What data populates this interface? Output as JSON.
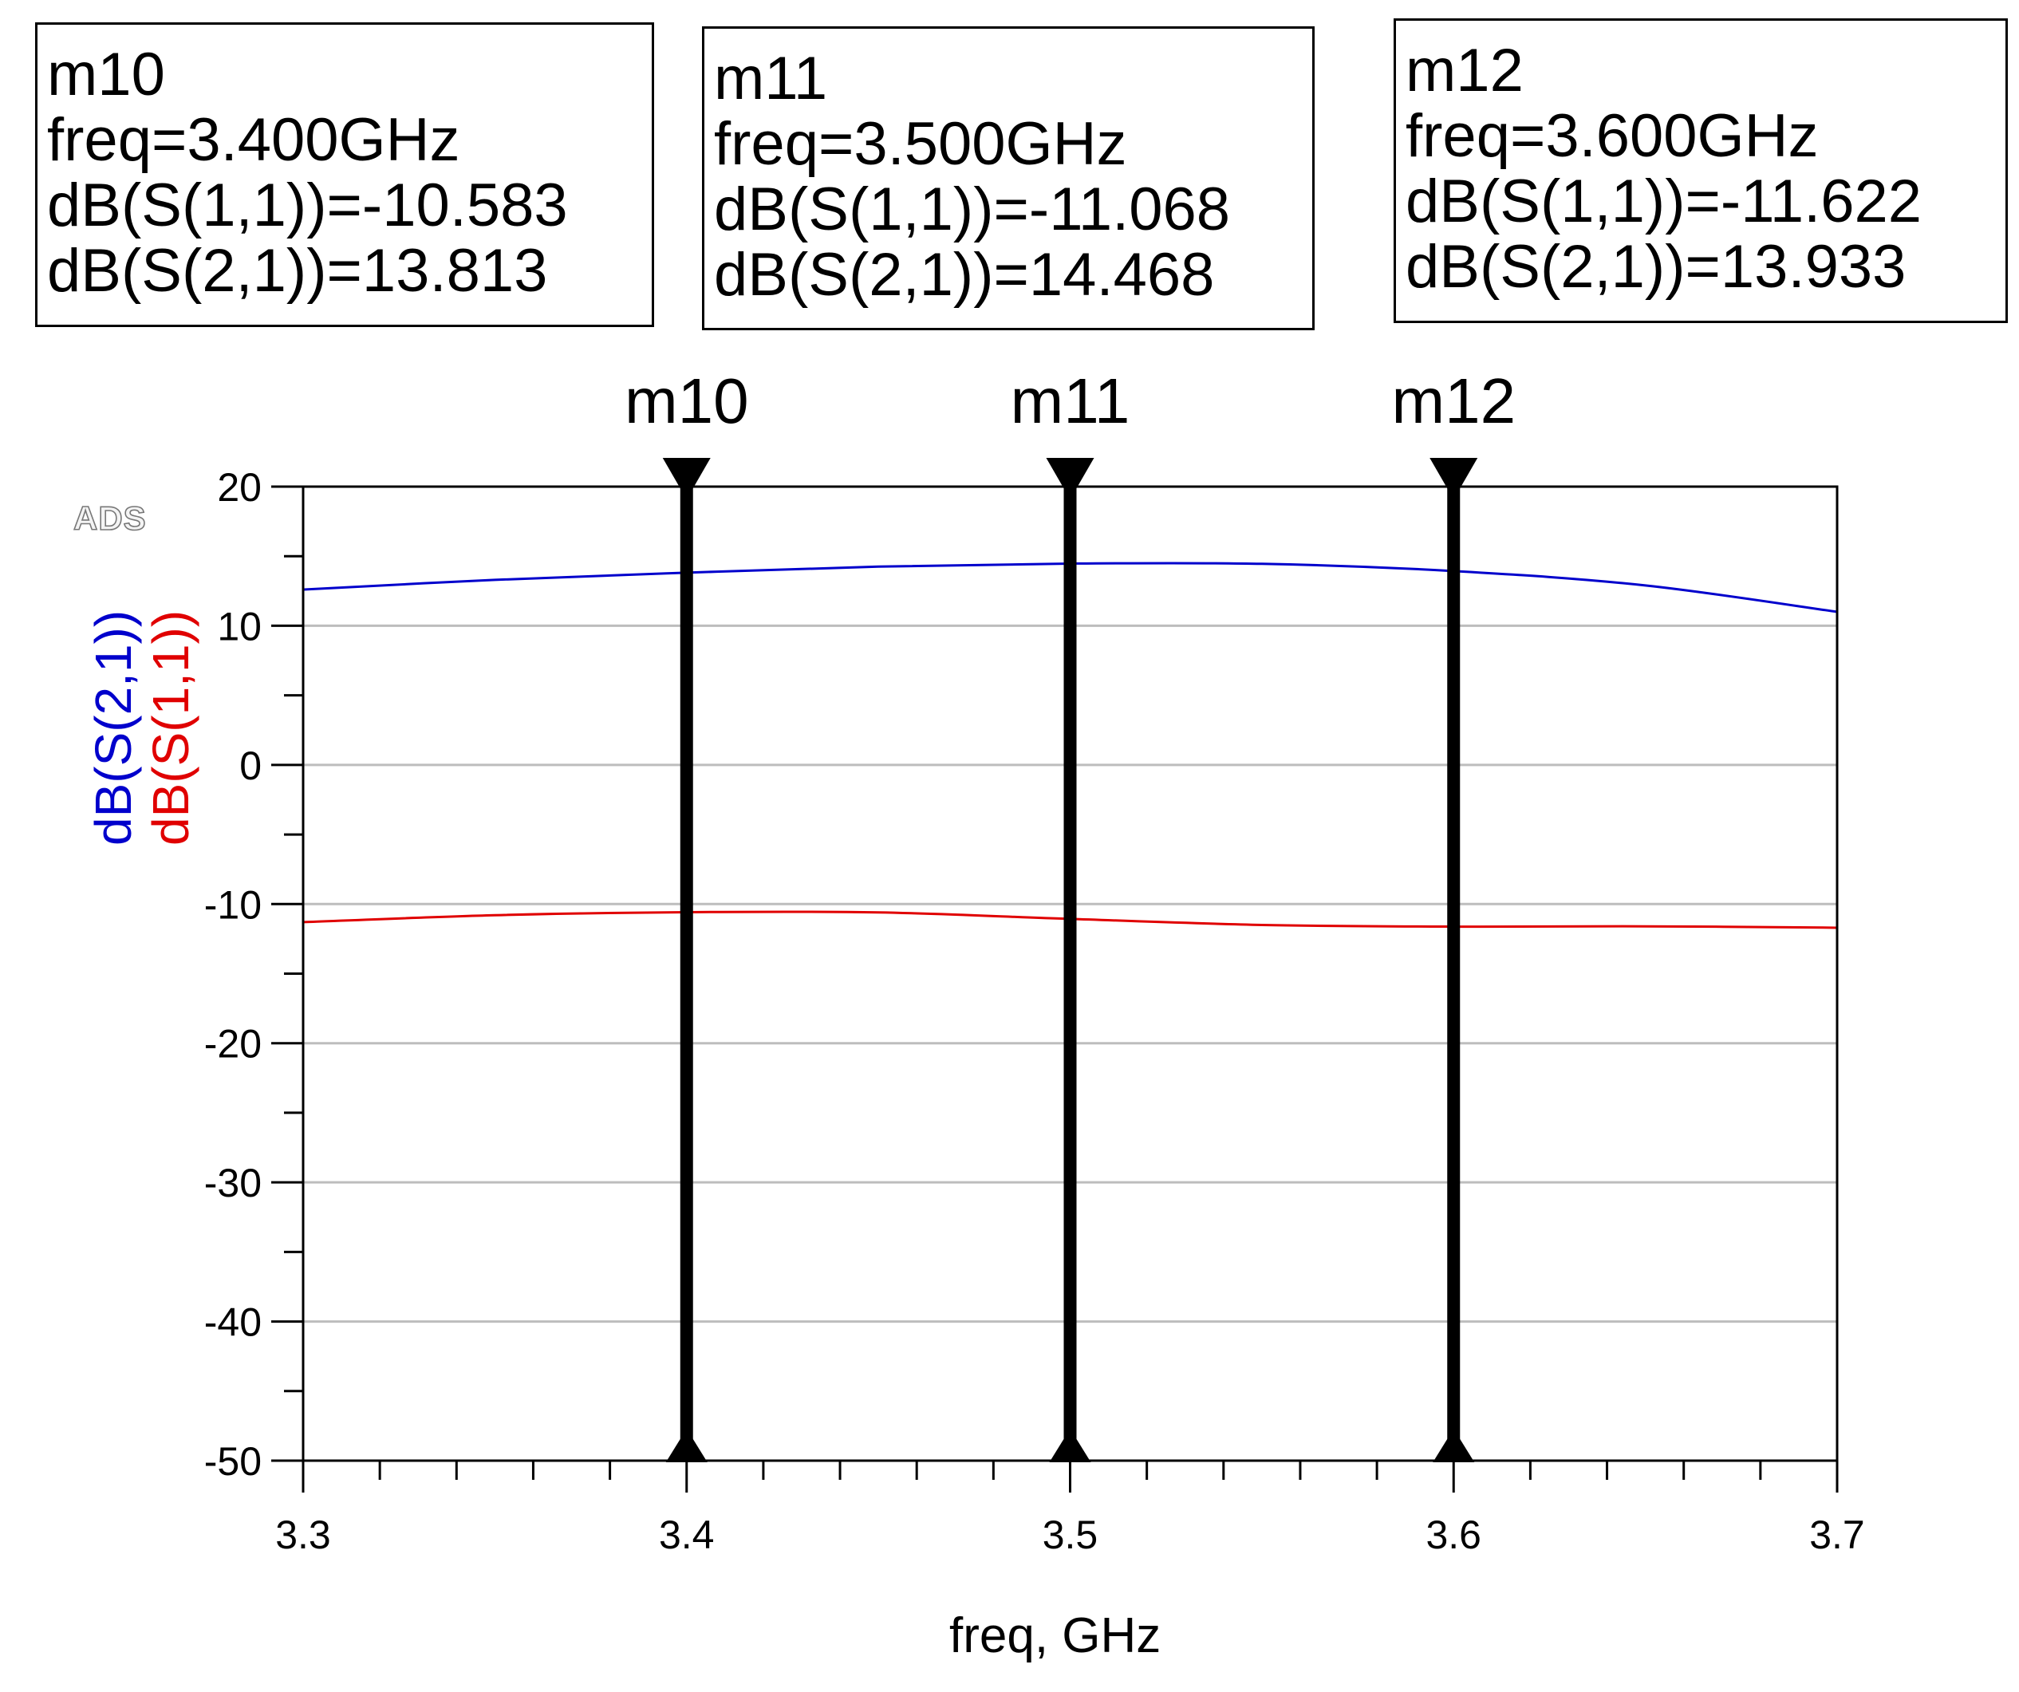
{
  "markers": [
    {
      "name": "m10",
      "freq_label": "freq=3.400GHz",
      "s11_label": "dB(S(1,1))=-10.583",
      "s21_label": "dB(S(2,1))=13.813",
      "freq": 3.4,
      "s11": -10.583,
      "s21": 13.813
    },
    {
      "name": "m11",
      "freq_label": "freq=3.500GHz",
      "s11_label": "dB(S(1,1))=-11.068",
      "s21_label": "dB(S(2,1))=14.468",
      "freq": 3.5,
      "s11": -11.068,
      "s21": 14.468
    },
    {
      "name": "m12",
      "freq_label": "freq=3.600GHz",
      "s11_label": "dB(S(1,1))=-11.622",
      "s21_label": "dB(S(2,1))=13.933",
      "freq": 3.6,
      "s11": -11.622,
      "s21": 13.933
    }
  ],
  "logo": "ADS",
  "chart_data": {
    "type": "line",
    "title": "",
    "xlabel": "freq, GHz",
    "ylabel_series": [
      "dB(S(2,1))",
      "dB(S(1,1))"
    ],
    "xlim": [
      3.3,
      3.7
    ],
    "ylim": [
      -50,
      20
    ],
    "x_ticks": [
      "3.3",
      "3.4",
      "3.5",
      "3.6",
      "3.7"
    ],
    "y_ticks": [
      "20",
      "10",
      "0",
      "-10",
      "-20",
      "-30",
      "-40",
      "-50"
    ],
    "grid": true,
    "x": [
      3.3,
      3.35,
      3.4,
      3.45,
      3.5,
      3.55,
      3.6,
      3.65,
      3.7
    ],
    "series": [
      {
        "name": "dB(S(2,1))",
        "color": "#0000cc",
        "values": [
          12.6,
          13.3,
          13.813,
          14.25,
          14.468,
          14.45,
          13.933,
          12.9,
          11.0
        ]
      },
      {
        "name": "dB(S(1,1))",
        "color": "#e00000",
        "values": [
          -11.3,
          -10.8,
          -10.583,
          -10.6,
          -11.068,
          -11.5,
          -11.622,
          -11.6,
          -11.7
        ]
      }
    ]
  }
}
